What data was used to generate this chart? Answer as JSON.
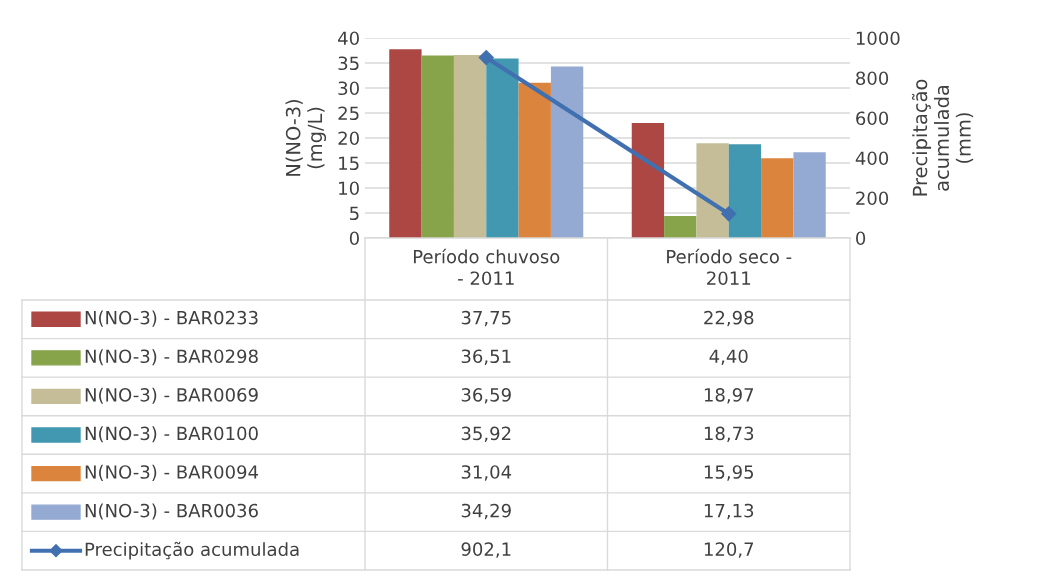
{
  "chart_data": {
    "type": "bar",
    "ylabel": "N(NO-3)\n(mg/L)",
    "y2label": "Precipitação\nacumulada\n(mm)",
    "categories": [
      "Período chuvoso\n- 2011",
      "Período seco -\n2011"
    ],
    "series": [
      {
        "name": "N(NO-3) - BAR0233",
        "color": "#ac4744",
        "values": [
          37.75,
          22.98
        ],
        "value_labels": [
          "37,75",
          "22,98"
        ]
      },
      {
        "name": "N(NO-3) - BAR0298",
        "color": "#87a44b",
        "values": [
          36.51,
          4.4
        ],
        "value_labels": [
          "36,51",
          "4,40"
        ]
      },
      {
        "name": "N(NO-3) - BAR0069",
        "color": "#c5bd97",
        "values": [
          36.59,
          18.97
        ],
        "value_labels": [
          "36,59",
          "18,97"
        ]
      },
      {
        "name": "N(NO-3) - BAR0100",
        "color": "#4298b1",
        "values": [
          35.92,
          18.73
        ],
        "value_labels": [
          "35,92",
          "18,73"
        ]
      },
      {
        "name": "N(NO-3) - BAR0094",
        "color": "#db843d",
        "values": [
          31.04,
          15.95
        ],
        "value_labels": [
          "31,04",
          "15,95"
        ]
      },
      {
        "name": "N(NO-3) - BAR0036",
        "color": "#95aad3",
        "values": [
          34.29,
          17.13
        ],
        "value_labels": [
          "34,29",
          "17,13"
        ]
      },
      {
        "name": "Precipitação acumulada",
        "type": "line",
        "axis": "y2",
        "marker": "diamond",
        "color": "#4170b0",
        "values": [
          902.1,
          120.7
        ],
        "value_labels": [
          "902,1",
          "120,7"
        ]
      }
    ],
    "ylim": [
      0,
      40
    ],
    "yticks": [
      0,
      5,
      10,
      15,
      20,
      25,
      30,
      35,
      40
    ],
    "y2lim": [
      0,
      1000
    ],
    "y2ticks": [
      0,
      200,
      400,
      600,
      800,
      1000
    ],
    "grid": "y",
    "legend": "bottom"
  }
}
